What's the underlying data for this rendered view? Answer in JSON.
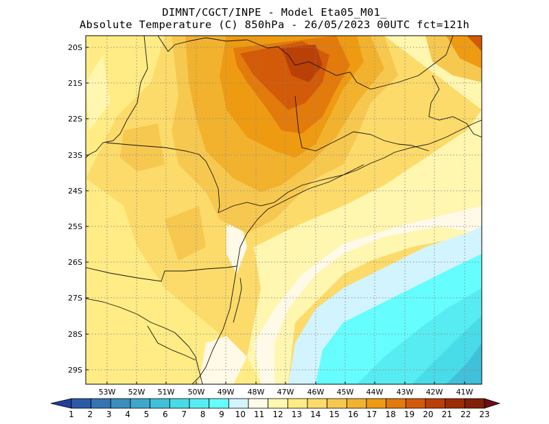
{
  "title": {
    "line1": "DIMNT/CGCT/INPE -  Model Eta05_M01_",
    "line2": "Absolute Temperature (C) 850hPa -  26/05/2023 00UTC fct=121h"
  },
  "map": {
    "lat_labels": [
      "20S",
      "21S",
      "22S",
      "23S",
      "24S",
      "25S",
      "26S",
      "27S",
      "28S",
      "29S"
    ],
    "lon_labels": [
      "53W",
      "52W",
      "51W",
      "50W",
      "49W",
      "48W",
      "47W",
      "46W",
      "45W",
      "44W",
      "43W",
      "42W",
      "41W"
    ],
    "lat_range": [
      -29.4,
      -19.8
    ],
    "lon_range": [
      -53.8,
      -40.6
    ],
    "grid": true
  },
  "colorbar": {
    "labels": [
      "1",
      "2",
      "3",
      "4",
      "5",
      "6",
      "7",
      "8",
      "9",
      "10",
      "11",
      "12",
      "13",
      "14",
      "15",
      "16",
      "17",
      "18",
      "19",
      "20",
      "21",
      "22",
      "23"
    ],
    "colors": [
      "#1f3f99",
      "#2a5aa8",
      "#3474b4",
      "#3b8ebf",
      "#3fa7cc",
      "#41c0da",
      "#48dbe8",
      "#56ecf2",
      "#66fdff",
      "#d2f4ff",
      "#fff9e8",
      "#fff6b0",
      "#ffec85",
      "#fcdb6a",
      "#f7c850",
      "#f2b22e",
      "#ee9b12",
      "#e27a0c",
      "#d25a08",
      "#b94006",
      "#9c2b07",
      "#812009",
      "#6a0f14"
    ]
  }
}
